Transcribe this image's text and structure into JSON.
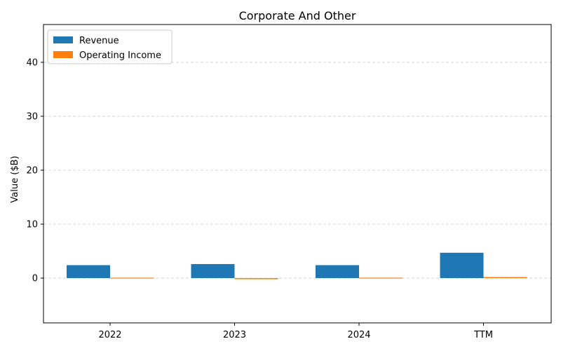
{
  "chart_data": {
    "type": "bar",
    "title": "Corporate And Other",
    "xlabel": "",
    "ylabel": "Value ($B)",
    "categories": [
      "2022",
      "2023",
      "2024",
      "TTM"
    ],
    "series": [
      {
        "name": "Revenue",
        "color": "#1f77b4",
        "values": [
          2.4,
          2.6,
          2.4,
          4.7
        ]
      },
      {
        "name": "Operating Income",
        "color": "#ff7f0e",
        "values": [
          0.0,
          -0.2,
          0.0,
          0.2
        ]
      }
    ],
    "ylim": [
      -8.3,
      47
    ],
    "yticks": [
      0,
      10,
      20,
      30,
      40
    ],
    "grid": "y-dashed",
    "legend": "top-left"
  }
}
